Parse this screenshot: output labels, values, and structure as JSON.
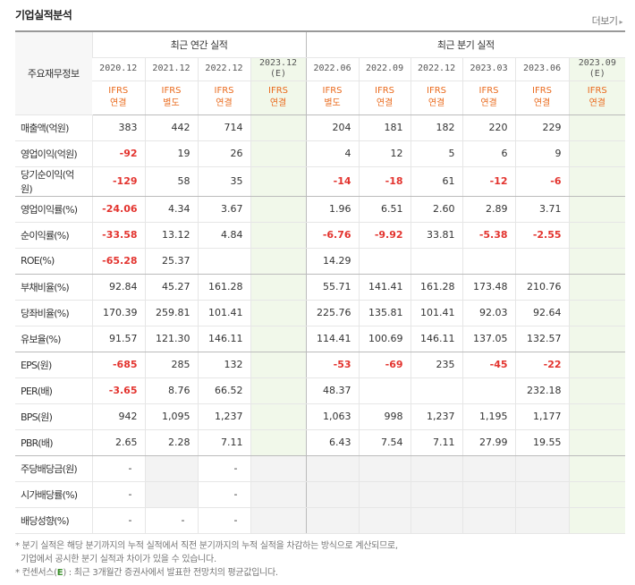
{
  "header": {
    "title": "기업실적분석",
    "more_label": "더보기",
    "more_icon": "chevron-right-icon"
  },
  "table": {
    "label_header": "주요재무정보",
    "group_annual": "최근 연간 실적",
    "group_quarter": "최근 분기 실적",
    "periods": [
      {
        "date": "2020.12",
        "sub": "",
        "std1": "IFRS",
        "std2": "연결"
      },
      {
        "date": "2021.12",
        "sub": "",
        "std1": "IFRS",
        "std2": "별도"
      },
      {
        "date": "2022.12",
        "sub": "",
        "std1": "IFRS",
        "std2": "연결"
      },
      {
        "date": "2023.12",
        "sub": "(E)",
        "std1": "IFRS",
        "std2": "연결"
      },
      {
        "date": "2022.06",
        "sub": "",
        "std1": "IFRS",
        "std2": "별도"
      },
      {
        "date": "2022.09",
        "sub": "",
        "std1": "IFRS",
        "std2": "연결"
      },
      {
        "date": "2022.12",
        "sub": "",
        "std1": "IFRS",
        "std2": "연결"
      },
      {
        "date": "2023.03",
        "sub": "",
        "std1": "IFRS",
        "std2": "연결"
      },
      {
        "date": "2023.06",
        "sub": "",
        "std1": "IFRS",
        "std2": "연결"
      },
      {
        "date": "2023.09",
        "sub": "(E)",
        "std1": "IFRS",
        "std2": "연결"
      }
    ],
    "rows": [
      {
        "label": "매출액(억원)",
        "values": [
          "383",
          "442",
          "714",
          "",
          "204",
          "181",
          "182",
          "220",
          "229",
          ""
        ]
      },
      {
        "label": "영업이익(억원)",
        "values": [
          "-92",
          "19",
          "26",
          "",
          "4",
          "12",
          "5",
          "6",
          "9",
          ""
        ]
      },
      {
        "label": "당기순이익(억원)",
        "values": [
          "-129",
          "58",
          "35",
          "",
          "-14",
          "-18",
          "61",
          "-12",
          "-6",
          ""
        ]
      },
      {
        "label": "영업이익률(%)",
        "values": [
          "-24.06",
          "4.34",
          "3.67",
          "",
          "1.96",
          "6.51",
          "2.60",
          "2.89",
          "3.71",
          ""
        ]
      },
      {
        "label": "순이익률(%)",
        "values": [
          "-33.58",
          "13.12",
          "4.84",
          "",
          "-6.76",
          "-9.92",
          "33.81",
          "-5.38",
          "-2.55",
          ""
        ]
      },
      {
        "label": "ROE(%)",
        "values": [
          "-65.28",
          "25.37",
          "",
          "",
          "14.29",
          "",
          "",
          "",
          "",
          ""
        ]
      },
      {
        "label": "부채비율(%)",
        "values": [
          "92.84",
          "45.27",
          "161.28",
          "",
          "55.71",
          "141.41",
          "161.28",
          "173.48",
          "210.76",
          ""
        ]
      },
      {
        "label": "당좌비율(%)",
        "values": [
          "170.39",
          "259.81",
          "101.41",
          "",
          "225.76",
          "135.81",
          "101.41",
          "92.03",
          "92.64",
          ""
        ]
      },
      {
        "label": "유보율(%)",
        "values": [
          "91.57",
          "121.30",
          "146.11",
          "",
          "114.41",
          "100.69",
          "146.11",
          "137.05",
          "132.57",
          ""
        ]
      },
      {
        "label": "EPS(원)",
        "values": [
          "-685",
          "285",
          "132",
          "",
          "-53",
          "-69",
          "235",
          "-45",
          "-22",
          ""
        ]
      },
      {
        "label": "PER(배)",
        "values": [
          "-3.65",
          "8.76",
          "66.52",
          "",
          "48.37",
          "",
          "",
          "",
          "232.18",
          ""
        ]
      },
      {
        "label": "BPS(원)",
        "values": [
          "942",
          "1,095",
          "1,237",
          "",
          "1,063",
          "998",
          "1,237",
          "1,195",
          "1,177",
          ""
        ]
      },
      {
        "label": "PBR(배)",
        "values": [
          "2.65",
          "2.28",
          "7.11",
          "",
          "6.43",
          "7.54",
          "7.11",
          "27.99",
          "19.55",
          ""
        ]
      },
      {
        "label": "주당배당금(원)",
        "values": [
          "-",
          "",
          "-",
          "",
          "",
          "",
          "",
          "",
          "",
          ""
        ]
      },
      {
        "label": "시가배당률(%)",
        "values": [
          "-",
          "",
          "-",
          "",
          "",
          "",
          "",
          "",
          "",
          ""
        ]
      },
      {
        "label": "배당성향(%)",
        "values": [
          "-",
          "-",
          "-",
          "",
          "",
          "",
          "",
          "",
          "",
          ""
        ]
      }
    ]
  },
  "notes": {
    "line1": "* 분기 실적은 해당 분기까지의 누적 실적에서 직전 분기까지의 누적 실적을 차감하는 방식으로 계산되므로,",
    "line2": "  기업에서 공시한 분기 실적과 차이가 있을 수 있습니다.",
    "line3_prefix": "* 컨센서스(",
    "line3_e": "E",
    "line3_suffix": ") : 최근 3개월간 증권사에서 발표한 전망치의 평균값입니다."
  }
}
